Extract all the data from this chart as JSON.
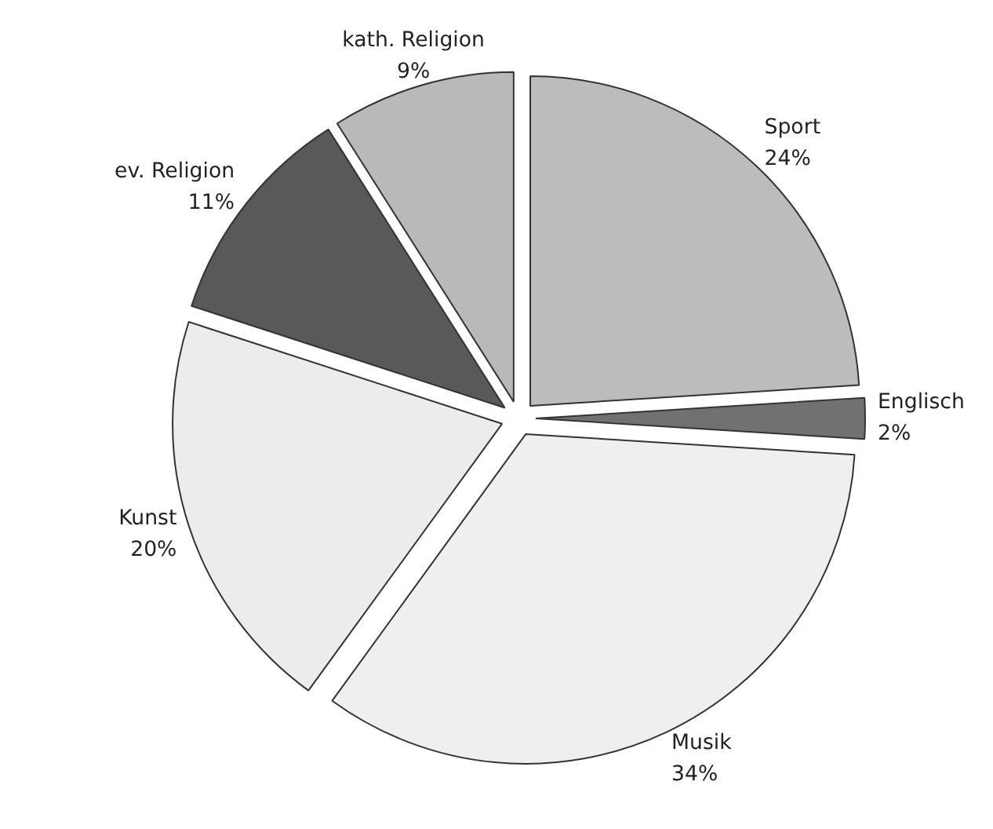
{
  "chart_data": {
    "type": "pie",
    "categories": [
      "Sport",
      "Englisch",
      "Musik",
      "Kunst",
      "ev. Religion",
      "kath. Religion"
    ],
    "values": [
      24,
      2,
      34,
      20,
      11,
      9
    ],
    "value_labels": [
      "24%",
      "2%",
      "34%",
      "20%",
      "11%",
      "9%"
    ],
    "colors": [
      "#bcbcbc",
      "#717171",
      "#efefef",
      "#ececec",
      "#595959",
      "#b9b9b9"
    ]
  }
}
